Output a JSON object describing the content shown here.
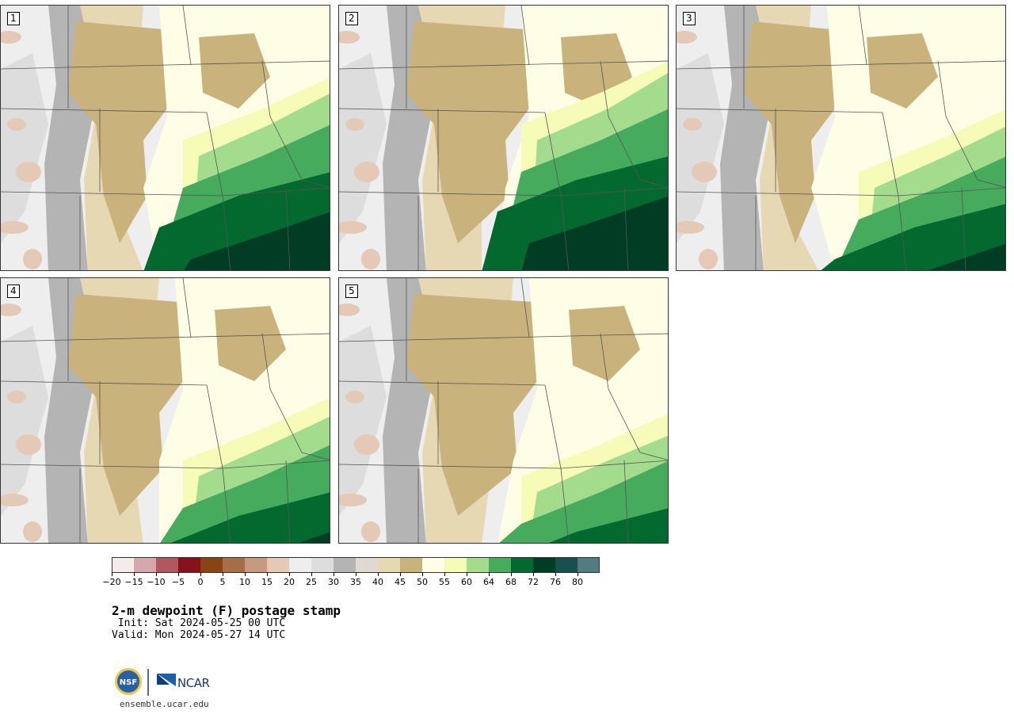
{
  "panels": [
    {
      "label": "1",
      "variant": 1
    },
    {
      "label": "2",
      "variant": 2
    },
    {
      "label": "3",
      "variant": 3
    },
    {
      "label": "4",
      "variant": 4
    },
    {
      "label": "5",
      "variant": 5
    }
  ],
  "colorbar": {
    "colors": [
      "#f5ebeb",
      "#d6a7ad",
      "#b0575f",
      "#86121e",
      "#8a4312",
      "#a56e47",
      "#c79a80",
      "#e3c9b6",
      "#eeeeee",
      "#dddddd",
      "#b4b4b4",
      "#dedad0",
      "#e7d8b4",
      "#c9b27b",
      "#fefee6",
      "#f7fbb8",
      "#a4dc8d",
      "#46ab5c",
      "#03692f",
      "#013d25",
      "#1a4f50",
      "#537c80"
    ],
    "tick_labels": [
      "−20",
      "−15",
      "−10",
      "−5",
      "0",
      "5",
      "10",
      "15",
      "20",
      "25",
      "30",
      "35",
      "40",
      "45",
      "50",
      "55",
      "60",
      "64",
      "68",
      "72",
      "76",
      "80"
    ]
  },
  "footer": {
    "title": "2-m dewpoint (F) postage stamp",
    "init": " Init: Sat 2024-05-25 00 UTC",
    "valid": "Valid: Mon 2024-05-27 14 UTC",
    "nsf_logo_text": "NSF",
    "ncar_logo_text": "NCAR",
    "website": "ensemble.ucar.edu"
  }
}
